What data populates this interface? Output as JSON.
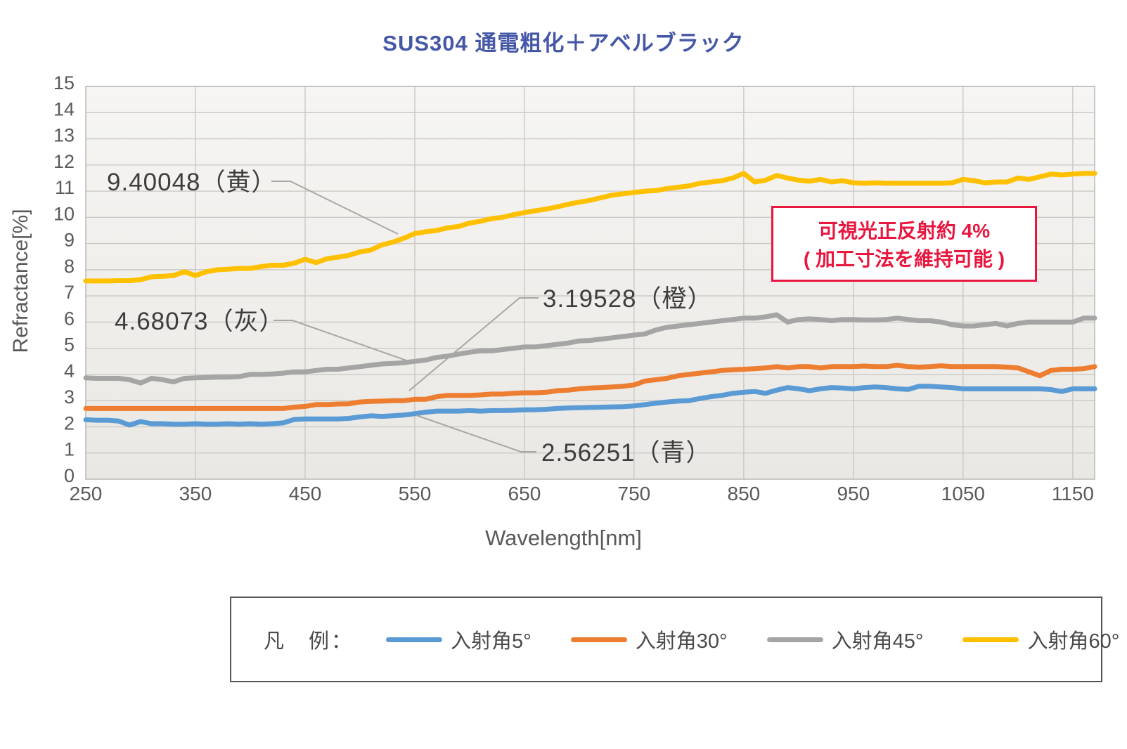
{
  "chart_data": {
    "type": "line",
    "title": "SUS304 通電粗化＋アベルブラック",
    "xlabel": "Wavelength[nm]",
    "ylabel": "Refractance[%]",
    "xlim": [
      250,
      1170
    ],
    "ylim": [
      0,
      15
    ],
    "xticks": [
      250,
      350,
      450,
      550,
      650,
      750,
      850,
      950,
      1050,
      1150
    ],
    "yticks": [
      0,
      1,
      2,
      3,
      4,
      5,
      6,
      7,
      8,
      9,
      10,
      11,
      12,
      13,
      14,
      15
    ],
    "grid": true,
    "legend_position": "bottom",
    "legend_caption": "凡　例：",
    "x": [
      250,
      260,
      270,
      280,
      290,
      300,
      310,
      320,
      330,
      340,
      350,
      360,
      370,
      380,
      390,
      400,
      410,
      420,
      430,
      440,
      450,
      460,
      470,
      480,
      490,
      500,
      510,
      520,
      530,
      540,
      550,
      560,
      570,
      580,
      590,
      600,
      610,
      620,
      630,
      640,
      650,
      660,
      670,
      680,
      690,
      700,
      710,
      720,
      730,
      740,
      750,
      760,
      770,
      780,
      790,
      800,
      810,
      820,
      830,
      840,
      850,
      860,
      870,
      880,
      890,
      900,
      910,
      920,
      930,
      940,
      950,
      960,
      970,
      980,
      990,
      1000,
      1010,
      1020,
      1030,
      1040,
      1050,
      1060,
      1070,
      1080,
      1090,
      1100,
      1110,
      1120,
      1130,
      1140,
      1150,
      1160,
      1170
    ],
    "series": [
      {
        "name": "入射角5°",
        "color": "#5B9BD5",
        "values": [
          2.27,
          2.25,
          2.25,
          2.22,
          2.07,
          2.2,
          2.12,
          2.12,
          2.1,
          2.1,
          2.12,
          2.1,
          2.1,
          2.12,
          2.1,
          2.12,
          2.1,
          2.12,
          2.15,
          2.28,
          2.3,
          2.3,
          2.3,
          2.3,
          2.32,
          2.38,
          2.42,
          2.4,
          2.42,
          2.45,
          2.5,
          2.56,
          2.6,
          2.6,
          2.6,
          2.62,
          2.6,
          2.62,
          2.62,
          2.63,
          2.65,
          2.65,
          2.67,
          2.7,
          2.72,
          2.73,
          2.74,
          2.75,
          2.76,
          2.77,
          2.8,
          2.85,
          2.9,
          2.95,
          2.98,
          3.0,
          3.08,
          3.15,
          3.2,
          3.28,
          3.32,
          3.35,
          3.28,
          3.4,
          3.5,
          3.45,
          3.38,
          3.45,
          3.5,
          3.48,
          3.45,
          3.5,
          3.52,
          3.5,
          3.45,
          3.43,
          3.55,
          3.55,
          3.52,
          3.5,
          3.45,
          3.45,
          3.45,
          3.45,
          3.45,
          3.45,
          3.45,
          3.45,
          3.42,
          3.35,
          3.45,
          3.45,
          3.45
        ]
      },
      {
        "name": "入射角30°",
        "color": "#ED7D31",
        "values": [
          2.7,
          2.7,
          2.7,
          2.7,
          2.7,
          2.7,
          2.7,
          2.7,
          2.7,
          2.7,
          2.7,
          2.7,
          2.7,
          2.7,
          2.7,
          2.7,
          2.7,
          2.7,
          2.7,
          2.75,
          2.78,
          2.85,
          2.85,
          2.87,
          2.88,
          2.95,
          2.97,
          2.98,
          3.0,
          3.0,
          3.05,
          3.05,
          3.15,
          3.2,
          3.2,
          3.2,
          3.22,
          3.25,
          3.25,
          3.28,
          3.3,
          3.3,
          3.32,
          3.38,
          3.4,
          3.45,
          3.48,
          3.5,
          3.52,
          3.55,
          3.6,
          3.75,
          3.8,
          3.85,
          3.95,
          4.0,
          4.05,
          4.1,
          4.15,
          4.18,
          4.2,
          4.22,
          4.25,
          4.3,
          4.25,
          4.3,
          4.3,
          4.25,
          4.3,
          4.3,
          4.3,
          4.32,
          4.3,
          4.3,
          4.35,
          4.3,
          4.28,
          4.3,
          4.33,
          4.3,
          4.3,
          4.3,
          4.3,
          4.3,
          4.28,
          4.25,
          4.1,
          3.95,
          4.15,
          4.2,
          4.2,
          4.22,
          4.3
        ]
      },
      {
        "name": "入射角45°",
        "color": "#A5A5A5",
        "values": [
          3.87,
          3.85,
          3.85,
          3.85,
          3.8,
          3.67,
          3.85,
          3.8,
          3.72,
          3.85,
          3.87,
          3.88,
          3.9,
          3.9,
          3.92,
          4.0,
          4.0,
          4.02,
          4.05,
          4.1,
          4.1,
          4.15,
          4.2,
          4.2,
          4.25,
          4.3,
          4.35,
          4.4,
          4.42,
          4.45,
          4.5,
          4.55,
          4.65,
          4.7,
          4.78,
          4.85,
          4.9,
          4.9,
          4.95,
          5.0,
          5.05,
          5.05,
          5.1,
          5.15,
          5.2,
          5.28,
          5.3,
          5.35,
          5.4,
          5.45,
          5.5,
          5.55,
          5.7,
          5.8,
          5.85,
          5.9,
          5.95,
          6.0,
          6.05,
          6.1,
          6.15,
          6.15,
          6.2,
          6.28,
          6.0,
          6.1,
          6.12,
          6.1,
          6.05,
          6.1,
          6.1,
          6.08,
          6.08,
          6.1,
          6.15,
          6.1,
          6.05,
          6.05,
          6.0,
          5.9,
          5.85,
          5.85,
          5.9,
          5.95,
          5.85,
          5.95,
          6.0,
          6.0,
          6.0,
          6.0,
          6.0,
          6.15,
          6.15
        ]
      },
      {
        "name": "入射角60°",
        "color": "#FFC000",
        "values": [
          7.57,
          7.57,
          7.57,
          7.58,
          7.58,
          7.62,
          7.73,
          7.75,
          7.78,
          7.92,
          7.78,
          7.92,
          8.0,
          8.02,
          8.05,
          8.05,
          8.12,
          8.17,
          8.17,
          8.25,
          8.4,
          8.27,
          8.42,
          8.48,
          8.55,
          8.68,
          8.75,
          8.95,
          9.05,
          9.2,
          9.38,
          9.45,
          9.5,
          9.6,
          9.65,
          9.78,
          9.85,
          9.95,
          10.0,
          10.1,
          10.18,
          10.25,
          10.32,
          10.4,
          10.5,
          10.58,
          10.65,
          10.75,
          10.85,
          10.9,
          10.95,
          11.0,
          11.02,
          11.1,
          11.15,
          11.2,
          11.3,
          11.35,
          11.4,
          11.5,
          11.68,
          11.35,
          11.42,
          11.6,
          11.5,
          11.42,
          11.38,
          11.45,
          11.35,
          11.4,
          11.32,
          11.3,
          11.32,
          11.3,
          11.3,
          11.3,
          11.3,
          11.3,
          11.3,
          11.32,
          11.45,
          11.4,
          11.32,
          11.35,
          11.35,
          11.5,
          11.45,
          11.55,
          11.65,
          11.62,
          11.65,
          11.68,
          11.68
        ]
      }
    ],
    "annotations": [
      {
        "text": "9.40048（黄）",
        "series": "入射角60°"
      },
      {
        "text": "4.68073（灰）",
        "series": "入射角45°"
      },
      {
        "text": "3.19528（橙）",
        "series": "入射角30°"
      },
      {
        "text": "2.56251（青）",
        "series": "入射角5°"
      }
    ],
    "note": {
      "line1": "可視光正反射約 4%",
      "line2": "( 加工寸法を維持可能 )"
    }
  },
  "colors": {
    "title": "#4557A7",
    "note_red": "#E8173F",
    "axis_text": "#595959",
    "annotation_text": "#3D3D3D",
    "gridline": "#CBC9C5",
    "plot_border": "#BFBDB9",
    "leader_line": "#A9A7A4"
  }
}
